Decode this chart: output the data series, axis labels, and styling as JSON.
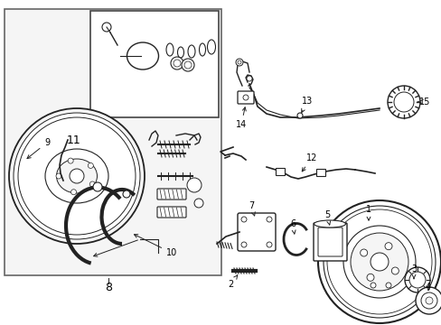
{
  "bg": "#f5f5f5",
  "white": "#ffffff",
  "lc": "#222222",
  "fig_w": 4.89,
  "fig_h": 3.6,
  "dpi": 100
}
